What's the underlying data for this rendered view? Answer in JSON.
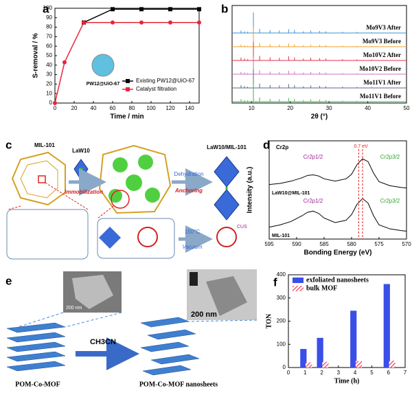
{
  "chart_data": [
    {
      "panel": "a",
      "type": "line",
      "xlabel": "Time / min",
      "ylabel": "S-removal / %",
      "inset_label": "PW12@UiO-67",
      "legend": "lower right",
      "xlim": [
        0,
        150
      ],
      "xticks": [
        0,
        20,
        40,
        60,
        80,
        100,
        120,
        140
      ],
      "ylim": [
        0,
        100
      ],
      "yticks": [
        0,
        10,
        20,
        30,
        40,
        50,
        60,
        70,
        80,
        90,
        100
      ],
      "series": [
        {
          "name": "Existing PW12@UiO-67",
          "color": "#000000",
          "marker": "square",
          "x": [
            30,
            60,
            90,
            120,
            150
          ],
          "values": [
            85,
            99,
            99,
            99,
            99
          ]
        },
        {
          "name": "Catalyst filtration",
          "color": "#e8253a",
          "marker": "circle",
          "x": [
            0,
            10,
            30,
            60,
            90,
            120,
            150
          ],
          "values": [
            0,
            43,
            85,
            85,
            85,
            85,
            85
          ]
        }
      ]
    },
    {
      "panel": "b",
      "type": "stick",
      "xlabel": "2θ (°)",
      "xlim": [
        5,
        50
      ],
      "xticks": [
        10,
        20,
        30,
        40,
        50
      ],
      "x": [
        7.3,
        8.2,
        9.0,
        10.5,
        12.1,
        14.8,
        17.2,
        19.6,
        21.1,
        23.4,
        25.3,
        27.6,
        29.2,
        33.5,
        37.2,
        41.0
      ],
      "series": [
        {
          "name": "Mo9V3 After",
          "color": "#3e8ed0",
          "values": [
            12,
            8,
            6,
            100,
            20,
            14,
            12,
            18,
            14,
            8,
            12,
            10,
            8,
            6,
            5,
            4
          ]
        },
        {
          "name": "Mo9V3 Before",
          "color": "#f0a020",
          "values": [
            10,
            7,
            5,
            95,
            18,
            12,
            10,
            16,
            12,
            7,
            10,
            9,
            7,
            5,
            4,
            3
          ]
        },
        {
          "name": "Mo10V2 After",
          "color": "#e0304a",
          "values": [
            14,
            9,
            6,
            90,
            22,
            15,
            13,
            20,
            15,
            9,
            13,
            11,
            9,
            6,
            5,
            4
          ]
        },
        {
          "name": "Mo10V2 Before",
          "color": "#d070b8",
          "values": [
            11,
            8,
            5,
            85,
            19,
            13,
            11,
            17,
            13,
            8,
            11,
            10,
            8,
            5,
            4,
            3
          ]
        },
        {
          "name": "Mo11V1 After",
          "color": "#5a6a80",
          "values": [
            13,
            9,
            6,
            92,
            21,
            14,
            12,
            19,
            14,
            8,
            12,
            10,
            8,
            6,
            5,
            4
          ]
        },
        {
          "name": "Mo11V1 Before",
          "color": "#30c040",
          "values": [
            12,
            8,
            6,
            88,
            20,
            13,
            12,
            18,
            13,
            8,
            11,
            10,
            8,
            5,
            4,
            3
          ]
        }
      ]
    },
    {
      "panel": "d",
      "type": "spectrum",
      "xlabel": "Bonding Energy (eV)",
      "ylabel": "Intensity (a.u.)",
      "title": "Cr2p",
      "xlim": [
        595,
        570
      ],
      "xticks": [
        595,
        590,
        585,
        580,
        575,
        570
      ],
      "peak_labels": [
        "Cr2p1/2",
        "Cr2p3/2",
        "Cr2p1/2",
        "Cr2p3/2"
      ],
      "shift_label": "0.7 eV",
      "ref_lines": [
        578.7,
        578.0
      ],
      "x": [
        595,
        593,
        591,
        589,
        588,
        587,
        586,
        585,
        583,
        581,
        580,
        579,
        578,
        577,
        576,
        575,
        573,
        571,
        570
      ],
      "series": [
        {
          "name": "LaW10@MIL-101",
          "color": "#000000",
          "values": [
            10,
            12,
            16,
            22,
            26,
            27,
            25,
            20,
            16,
            20,
            28,
            45,
            55,
            50,
            30,
            15,
            8,
            5,
            4
          ]
        },
        {
          "name": "MIL-101",
          "color": "#000000",
          "values": [
            10,
            14,
            20,
            30,
            36,
            38,
            34,
            26,
            18,
            22,
            32,
            50,
            60,
            52,
            30,
            14,
            7,
            4,
            3
          ]
        }
      ]
    },
    {
      "panel": "f",
      "type": "bar",
      "xlabel": "Time (h)",
      "ylabel": "TON",
      "legend": "upper left",
      "xlim": [
        0,
        7
      ],
      "xticks": [
        0,
        1,
        2,
        3,
        4,
        5,
        6,
        7
      ],
      "ylim": [
        0,
        400
      ],
      "yticks": [
        0,
        100,
        200,
        300,
        400
      ],
      "x": [
        1,
        2,
        4,
        6
      ],
      "series": [
        {
          "name": "exfoliated nanosheets",
          "color": "#3a4ee8",
          "values": [
            80,
            128,
            245,
            360
          ]
        },
        {
          "name": "bulk MOF",
          "color": "#e8405a",
          "hatch": true,
          "values": [
            22,
            25,
            28,
            30
          ]
        }
      ]
    }
  ],
  "diagram_c": {
    "panel": "c",
    "mil": "MIL-101",
    "law": "LaW10",
    "immobilization": "Immobilization",
    "product": "LaW10/MIL-101",
    "dehydration": "Dehydration",
    "anchoring": "Anchoring",
    "temperature": "150°C",
    "vacuum": "Vacuum",
    "cus": "CUS"
  },
  "diagram_e": {
    "panel": "e",
    "scale_left": "200 nm",
    "scale_right": "200 nm",
    "solvent": "CH3CN",
    "left_label": "POM-Co-MOF",
    "right_label": "POM-Co-MOF nanosheets"
  }
}
